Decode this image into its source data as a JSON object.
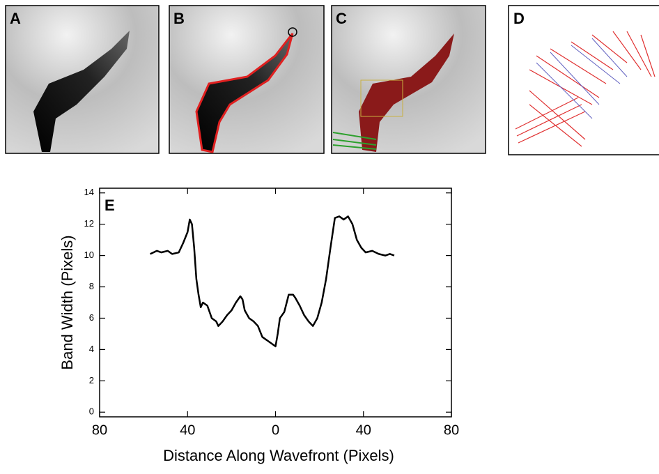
{
  "panels": [
    "A",
    "B",
    "C",
    "D"
  ],
  "chart_data": {
    "type": "line",
    "annotation": "E",
    "x_label": "Distance Along Wavefront (Pixels)",
    "y_label": "Band Width (Pixels)",
    "x": [
      -57,
      -54,
      -52,
      -49,
      -47,
      -44,
      -42,
      -40,
      -39,
      -38,
      -37,
      -36,
      -35,
      -34,
      -33,
      -31,
      -29,
      -27,
      -26,
      -24,
      -22,
      -20,
      -18,
      -16,
      -15,
      -14,
      -12,
      -10,
      -8,
      -6,
      -4,
      -2,
      0,
      1,
      2,
      4,
      6,
      8,
      9,
      11,
      13,
      15,
      17,
      19,
      21,
      23,
      25,
      27,
      29,
      31,
      33,
      35,
      37,
      39,
      41,
      44,
      47,
      50,
      52,
      54
    ],
    "values": [
      10.1,
      10.3,
      10.2,
      10.3,
      10.1,
      10.2,
      10.8,
      11.5,
      12.3,
      12.0,
      10.5,
      8.5,
      7.5,
      6.7,
      7.0,
      6.8,
      6.0,
      5.8,
      5.5,
      5.8,
      6.2,
      6.5,
      7.0,
      7.4,
      7.2,
      6.5,
      6.0,
      5.8,
      5.5,
      4.8,
      4.6,
      4.4,
      4.2,
      5.0,
      6.0,
      6.4,
      7.5,
      7.5,
      7.3,
      6.8,
      6.2,
      5.8,
      5.5,
      6.0,
      7.0,
      8.5,
      10.5,
      12.4,
      12.5,
      12.3,
      12.5,
      12.0,
      11.0,
      10.5,
      10.2,
      10.3,
      10.1,
      10.0,
      10.1,
      10.0
    ],
    "color": "#000000",
    "xlim": [
      -80,
      80
    ],
    "xticks": [
      {
        "value": -80,
        "label": "80"
      },
      {
        "value": -40,
        "label": "40"
      },
      0,
      40,
      80
    ],
    "ylim": [
      -0.3,
      14.3
    ],
    "yticks": [
      0,
      2,
      4,
      6,
      8,
      10,
      12,
      14
    ]
  }
}
